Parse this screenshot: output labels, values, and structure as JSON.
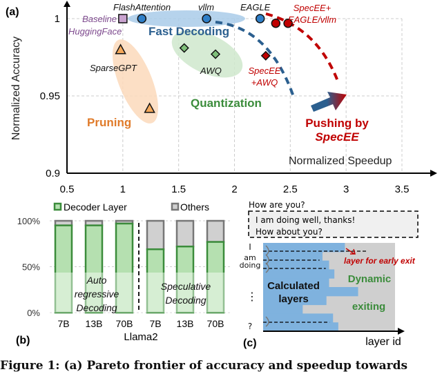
{
  "chart_data": [
    {
      "panel": "(a)",
      "type": "scatter",
      "xlabel": "Normalized Speedup",
      "ylabel": "Normalized Accuracy",
      "xlim": [
        0.5,
        3.5
      ],
      "ylim": [
        0.9,
        1.0
      ],
      "xticks": [
        "0.5",
        "1",
        "1.5",
        "2",
        "2.5",
        "3",
        "3.5"
      ],
      "yticks": [
        "0.9",
        "0.95",
        "1"
      ],
      "grid": true,
      "series": [
        {
          "name": "Baseline HuggingFace",
          "marker": "square",
          "color": "#c9a3cf",
          "points": [
            [
              1.0,
              1.0
            ]
          ]
        },
        {
          "name": "Fast Decoding",
          "marker": "circle",
          "color": "#2f7fc8",
          "points": [
            [
              1.17,
              1.0
            ],
            [
              1.75,
              1.0
            ],
            [
              2.23,
              1.0
            ]
          ]
        },
        {
          "name": "Quantization",
          "marker": "diamond",
          "color": "#7fc07a",
          "points": [
            [
              1.55,
              0.981
            ],
            [
              1.83,
              0.977
            ]
          ]
        },
        {
          "name": "Pruning",
          "marker": "triangle",
          "color": "#f4a85a",
          "points": [
            [
              0.98,
              0.98
            ],
            [
              1.24,
              0.942
            ]
          ]
        },
        {
          "name": "SpecEE+EAGLE/vllm",
          "marker": "circle",
          "color": "#c00000",
          "points": [
            [
              2.37,
              0.997
            ],
            [
              2.48,
              0.997
            ]
          ]
        },
        {
          "name": "SpecEE+AWQ",
          "marker": "diamond",
          "color": "#c00000",
          "points": [
            [
              2.28,
              0.976
            ]
          ]
        }
      ],
      "labels": {
        "baseline": "Baseline",
        "huggingface": "HuggingFace",
        "flashattention": "FlashAttention",
        "vllm": "vllm",
        "eagle": "EAGLE",
        "specee_eagle_1": "SpecEE+",
        "specee_eagle_2": "EAGLE/vllm",
        "sparsegpt": "SparseGPT",
        "awq": "AWQ",
        "specee_awq_1": "SpecEE",
        "specee_awq_2": "+AWQ",
        "fast_decoding": "Fast Decoding",
        "quantization": "Quantization",
        "pruning": "Pruning",
        "pushing_1": "Pushing by",
        "pushing_2": "SpecEE"
      }
    },
    {
      "panel": "(b)",
      "type": "bar",
      "stacked": true,
      "xlabel": "Llama2",
      "categories": [
        "7B",
        "13B",
        "70B",
        "7B",
        "13B",
        "70B"
      ],
      "yticks": [
        "0%",
        "50%",
        "100%"
      ],
      "ylim": [
        0,
        100
      ],
      "legend": "top",
      "series": [
        {
          "name": "Decoder Layer",
          "color": "#b5e0b0",
          "values": [
            95,
            95,
            97,
            69,
            72,
            77
          ]
        },
        {
          "name": "Others",
          "color": "#d0d0d0",
          "values": [
            5,
            5,
            3,
            31,
            28,
            23
          ]
        }
      ],
      "groups": [
        "Auto regressive Decoding",
        "Speculative Decoding"
      ],
      "group_lines": [
        [
          "Auto",
          "regressive",
          "Decoding"
        ],
        [
          "Speculative",
          "Decoding"
        ]
      ]
    }
  ],
  "panel_c": {
    "label": "(c)",
    "prompt": "How are you?",
    "response_1": "I am doing well, thanks!",
    "response_2": "How about you?",
    "tokens": [
      "I",
      "am",
      "doing",
      "⋮",
      "?"
    ],
    "calculated": [
      "Calculated",
      "layers"
    ],
    "dynamic": "Dynamic",
    "exiting": "exiting",
    "early_exit": "layer for early exit",
    "xlabel": "layer id",
    "layer_fractions": [
      0.62,
      0.45,
      0.5,
      0.54,
      0.5,
      0.72,
      0.48,
      0.3,
      0.53,
      0.57
    ]
  },
  "caption": "Figure 1: (a) Pareto frontier of accuracy and speedup towards"
}
